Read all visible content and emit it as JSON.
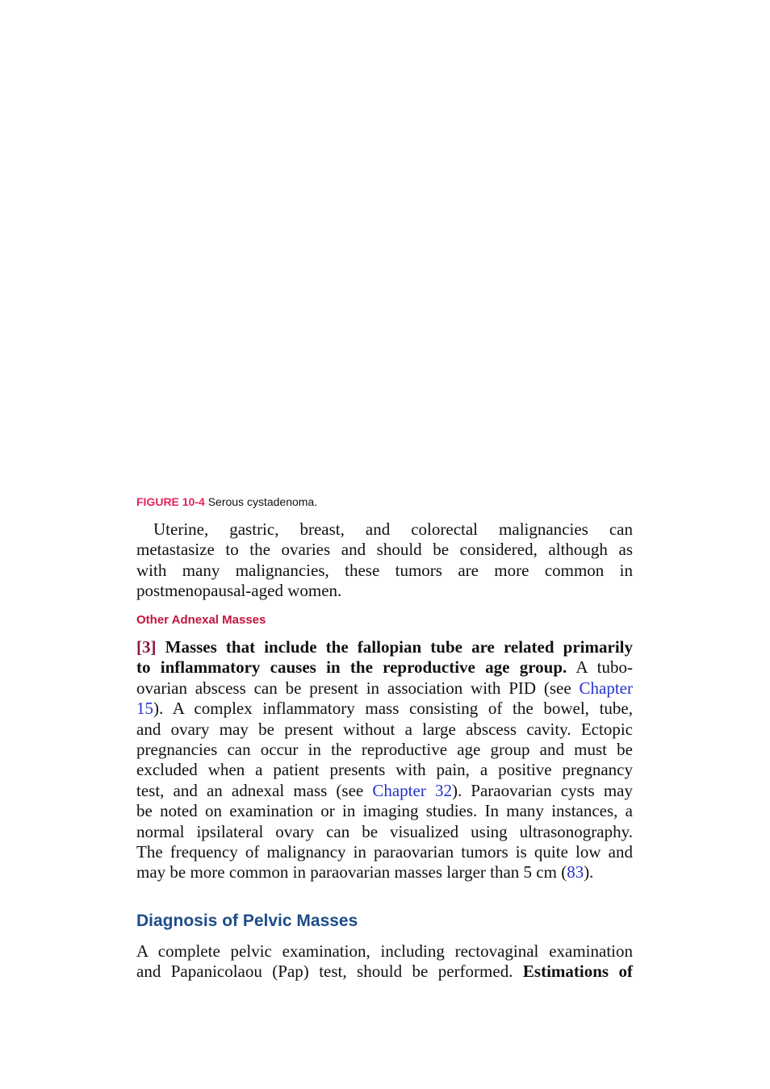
{
  "caption": {
    "label": "FIGURE 10-4",
    "text": " Serous cystadenoma."
  },
  "paragraphs": [
    {
      "lines": [
        [
          {
            "text": "Uterine, gastric, breast, and colorectal malignancies can"
          }
        ],
        [
          {
            "text": "metastasize to the ovaries and should be considered, although as"
          }
        ],
        [
          {
            "text": "with many malignancies, these tumors are more common in"
          }
        ],
        [
          {
            "text": "postmenopausal-aged women."
          }
        ]
      ]
    },
    {
      "lines": [
        [
          {
            "text": "[3]",
            "style": "ref"
          },
          {
            "text": " Masses that include the fallopian tube are related primarily",
            "style": "bold"
          }
        ],
        [
          {
            "text": "to inflammatory causes in the reproductive age group.",
            "style": "bold"
          },
          {
            "text": " A tubo-"
          }
        ],
        [
          {
            "text": "ovarian abscess can be present in association with PID (see "
          },
          {
            "text": "Chapter",
            "style": "link"
          }
        ],
        [
          {
            "text": "15",
            "style": "link"
          },
          {
            "text": "). A complex inflammatory mass consisting of the bowel, tube,"
          }
        ],
        [
          {
            "text": "and ovary may be present without a large abscess cavity. Ectopic"
          }
        ],
        [
          {
            "text": "pregnancies can occur in the reproductive age group and must be"
          }
        ],
        [
          {
            "text": "excluded when a patient presents with pain, a positive pregnancy"
          }
        ],
        [
          {
            "text": "test, and an adnexal mass (see "
          },
          {
            "text": "Chapter 32",
            "style": "link"
          },
          {
            "text": "). Paraovarian cysts may"
          }
        ],
        [
          {
            "text": "be noted on examination or in imaging studies. In many instances, a"
          }
        ],
        [
          {
            "text": "normal ipsilateral ovary can be visualized using ultrasonography."
          }
        ],
        [
          {
            "text": "The frequency of malignancy in paraovarian tumors is quite low and"
          }
        ],
        [
          {
            "text": "may be more common in paraovarian masses larger than 5 cm ("
          },
          {
            "text": "83",
            "style": "link"
          },
          {
            "text": ")."
          }
        ]
      ]
    },
    {
      "lines": [
        [
          {
            "text": "A complete pelvic examination, including rectovaginal examination"
          }
        ],
        [
          {
            "text": "and Papanicolaou (Pap) test, should be performed. "
          },
          {
            "text": "Estimations of",
            "style": "bold"
          }
        ]
      ]
    }
  ],
  "headings": [
    "Other Adnexal Masses",
    "Diagnosis of Pelvic Masses"
  ]
}
